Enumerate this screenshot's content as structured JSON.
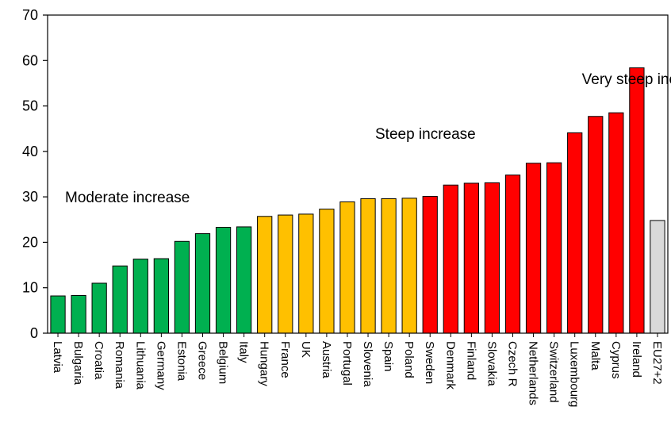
{
  "chart_data": {
    "type": "bar",
    "title": "",
    "xlabel": "",
    "ylabel": "",
    "ylim": [
      0,
      70
    ],
    "yticks": [
      0,
      10,
      20,
      30,
      40,
      50,
      60,
      70
    ],
    "grid": false,
    "categories": [
      "Latvia",
      "Bulgaria",
      "Croatia",
      "Romania",
      "Lithuania",
      "Germany",
      "Estonia",
      "Greece",
      "Belgium",
      "Italy",
      "Hungary",
      "France",
      "UK",
      "Austria",
      "Portugal",
      "Slovenia",
      "Spain",
      "Poland",
      "Sweden",
      "Denmark",
      "Finland",
      "Slovakia",
      "Czech R",
      "Netherlands",
      "Switzerland",
      "Luxembourg",
      "Malta",
      "Cyprus",
      "Ireland",
      "EU27+2"
    ],
    "values": [
      8.2,
      8.3,
      11.0,
      14.8,
      16.3,
      16.4,
      20.2,
      21.9,
      23.3,
      23.4,
      25.7,
      26.0,
      26.2,
      27.3,
      28.9,
      29.6,
      29.6,
      29.7,
      30.1,
      32.6,
      33.0,
      33.1,
      34.8,
      37.4,
      37.5,
      44.1,
      47.7,
      48.5,
      58.4,
      24.8
    ],
    "groups": [
      "moderate",
      "moderate",
      "moderate",
      "moderate",
      "moderate",
      "moderate",
      "moderate",
      "moderate",
      "moderate",
      "moderate",
      "steep",
      "steep",
      "steep",
      "steep",
      "steep",
      "steep",
      "steep",
      "steep",
      "very",
      "very",
      "very",
      "very",
      "very",
      "very",
      "very",
      "very",
      "very",
      "very",
      "very",
      "total"
    ],
    "colors": {
      "moderate": "#00b050",
      "steep": "#ffc000",
      "very": "#ff0000",
      "total": "#d9d9d9",
      "outline": "#000000"
    },
    "annotations": [
      {
        "text": "Moderate increase",
        "at_y": 30,
        "near_category": "Latvia"
      },
      {
        "text": "Steep increase",
        "at_y": 44,
        "near_category": "Slovenia"
      },
      {
        "text": "Very steep increase",
        "at_y": 56,
        "near_category": "Luxembourg"
      }
    ]
  }
}
